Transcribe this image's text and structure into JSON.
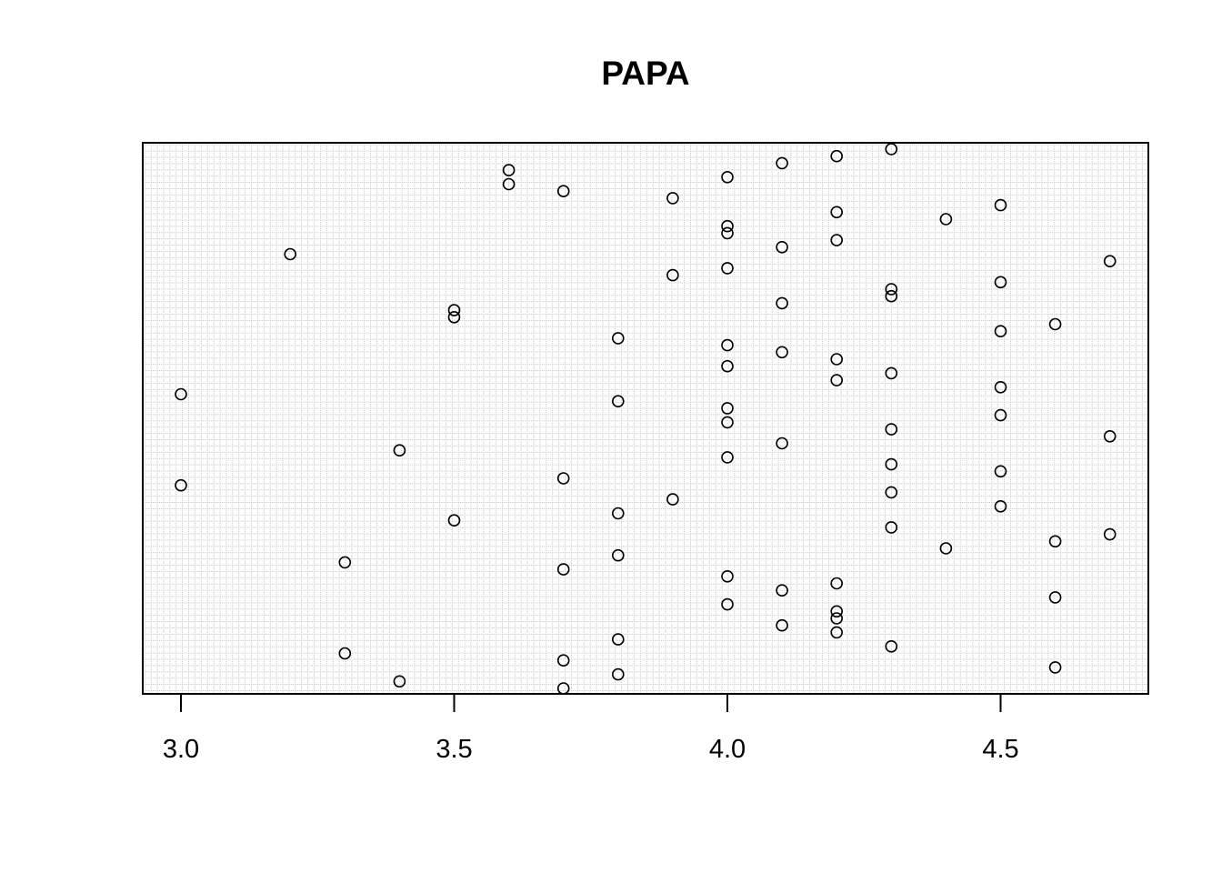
{
  "chart_data": {
    "type": "scatter",
    "title": "PAPA",
    "xlabel": "",
    "ylabel": "",
    "xlim": [
      2.93,
      4.77
    ],
    "y_axis_shown": false,
    "grid": true,
    "grid_style": "dense dotted",
    "marker": "open-circle",
    "x_ticks": [
      3.0,
      3.5,
      4.0,
      4.5
    ],
    "x_tick_labels": [
      "3.0",
      "3.5",
      "4.0",
      "4.5"
    ],
    "points": [
      {
        "x": 4.3,
        "y": 88
      },
      {
        "x": 4.2,
        "y": 87
      },
      {
        "x": 4.1,
        "y": 86
      },
      {
        "x": 3.6,
        "y": 85
      },
      {
        "x": 4.0,
        "y": 84
      },
      {
        "x": 3.6,
        "y": 83
      },
      {
        "x": 3.7,
        "y": 82
      },
      {
        "x": 3.9,
        "y": 81
      },
      {
        "x": 4.5,
        "y": 80
      },
      {
        "x": 4.2,
        "y": 79
      },
      {
        "x": 4.4,
        "y": 78
      },
      {
        "x": 4.0,
        "y": 77
      },
      {
        "x": 4.0,
        "y": 76
      },
      {
        "x": 4.2,
        "y": 75
      },
      {
        "x": 4.1,
        "y": 74
      },
      {
        "x": 3.2,
        "y": 73
      },
      {
        "x": 4.7,
        "y": 72
      },
      {
        "x": 4.0,
        "y": 71
      },
      {
        "x": 3.9,
        "y": 70
      },
      {
        "x": 4.5,
        "y": 69
      },
      {
        "x": 4.3,
        "y": 68
      },
      {
        "x": 4.3,
        "y": 67
      },
      {
        "x": 4.1,
        "y": 66
      },
      {
        "x": 3.5,
        "y": 65
      },
      {
        "x": 3.5,
        "y": 64
      },
      {
        "x": 4.6,
        "y": 63
      },
      {
        "x": 4.5,
        "y": 62
      },
      {
        "x": 3.8,
        "y": 61
      },
      {
        "x": 4.0,
        "y": 60
      },
      {
        "x": 4.1,
        "y": 59
      },
      {
        "x": 4.2,
        "y": 58
      },
      {
        "x": 4.0,
        "y": 57
      },
      {
        "x": 4.3,
        "y": 56
      },
      {
        "x": 4.2,
        "y": 55
      },
      {
        "x": 4.5,
        "y": 54
      },
      {
        "x": 3.0,
        "y": 53
      },
      {
        "x": 3.8,
        "y": 52
      },
      {
        "x": 4.0,
        "y": 51
      },
      {
        "x": 4.5,
        "y": 50
      },
      {
        "x": 4.0,
        "y": 49
      },
      {
        "x": 4.3,
        "y": 48
      },
      {
        "x": 4.7,
        "y": 47
      },
      {
        "x": 4.1,
        "y": 46
      },
      {
        "x": 3.4,
        "y": 45
      },
      {
        "x": 4.0,
        "y": 44
      },
      {
        "x": 4.3,
        "y": 43
      },
      {
        "x": 4.5,
        "y": 42
      },
      {
        "x": 3.7,
        "y": 41
      },
      {
        "x": 3.0,
        "y": 40
      },
      {
        "x": 4.3,
        "y": 39
      },
      {
        "x": 3.9,
        "y": 38
      },
      {
        "x": 4.5,
        "y": 37
      },
      {
        "x": 3.8,
        "y": 36
      },
      {
        "x": 3.5,
        "y": 35
      },
      {
        "x": 4.3,
        "y": 34
      },
      {
        "x": 4.7,
        "y": 33
      },
      {
        "x": 4.6,
        "y": 32
      },
      {
        "x": 4.4,
        "y": 31
      },
      {
        "x": 3.8,
        "y": 30
      },
      {
        "x": 3.3,
        "y": 29
      },
      {
        "x": 3.7,
        "y": 28
      },
      {
        "x": 4.0,
        "y": 27
      },
      {
        "x": 4.2,
        "y": 26
      },
      {
        "x": 4.1,
        "y": 25
      },
      {
        "x": 4.6,
        "y": 24
      },
      {
        "x": 4.0,
        "y": 23
      },
      {
        "x": 4.2,
        "y": 22
      },
      {
        "x": 4.2,
        "y": 21
      },
      {
        "x": 4.1,
        "y": 20
      },
      {
        "x": 4.2,
        "y": 19
      },
      {
        "x": 3.8,
        "y": 18
      },
      {
        "x": 4.3,
        "y": 17
      },
      {
        "x": 3.3,
        "y": 16
      },
      {
        "x": 3.7,
        "y": 15
      },
      {
        "x": 4.6,
        "y": 14
      },
      {
        "x": 3.8,
        "y": 13
      },
      {
        "x": 3.4,
        "y": 12
      },
      {
        "x": 3.7,
        "y": 11
      }
    ]
  }
}
